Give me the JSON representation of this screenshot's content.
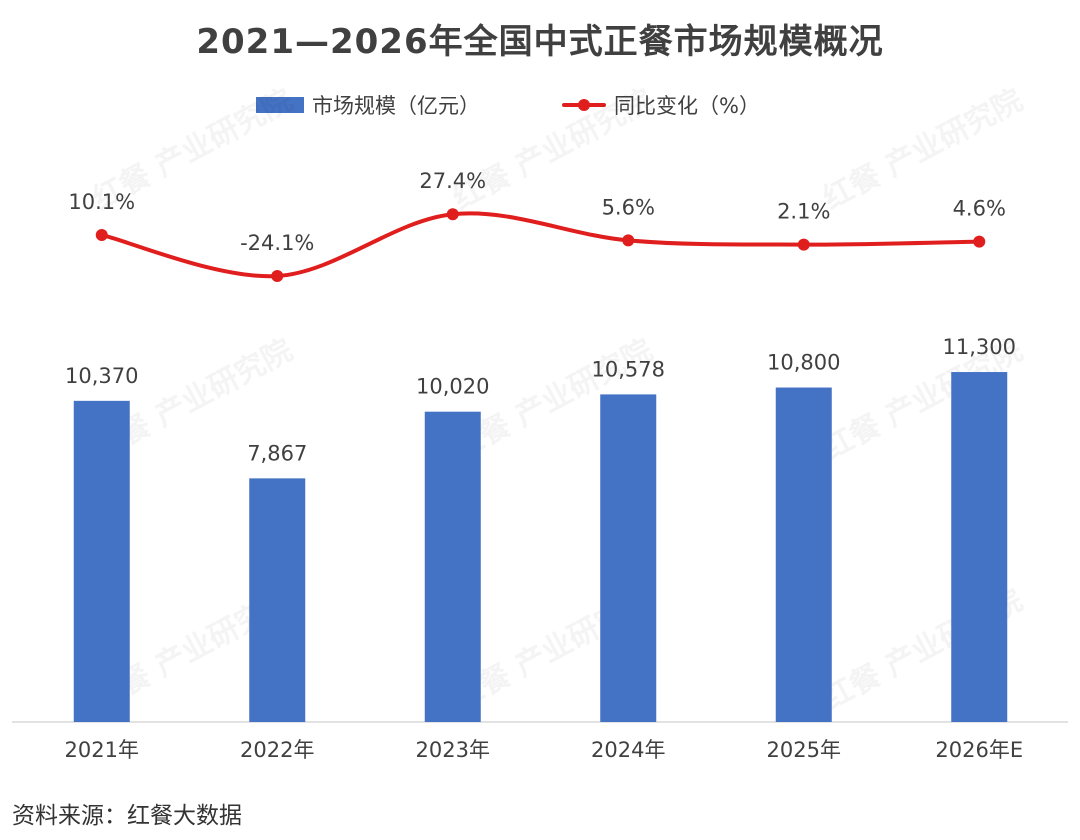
{
  "chart_data": {
    "type": "bar",
    "title": "2021—2026年全国中式正餐市场规模概况",
    "categories": [
      "2021年",
      "2022年",
      "2023年",
      "2024年",
      "2025年",
      "2026年E"
    ],
    "series": [
      {
        "name": "市场规模（亿元）",
        "type": "bar",
        "color": "#4472C4",
        "values": [
          10370,
          7867,
          10020,
          10578,
          10800,
          11300
        ],
        "labels": [
          "10,370",
          "7,867",
          "10,020",
          "10,578",
          "10,800",
          "11,300"
        ]
      },
      {
        "name": "同比变化（%）",
        "type": "line",
        "color": "#E01E1E",
        "values": [
          10.1,
          -24.1,
          27.4,
          5.6,
          2.1,
          4.6
        ],
        "labels": [
          "10.1%",
          "-24.1%",
          "27.4%",
          "5.6%",
          "2.1%",
          "4.6%"
        ]
      }
    ],
    "grid": false,
    "legend_position": "top"
  },
  "source": "资料来源：红餐大数据",
  "watermark": "红餐 产业研究院"
}
